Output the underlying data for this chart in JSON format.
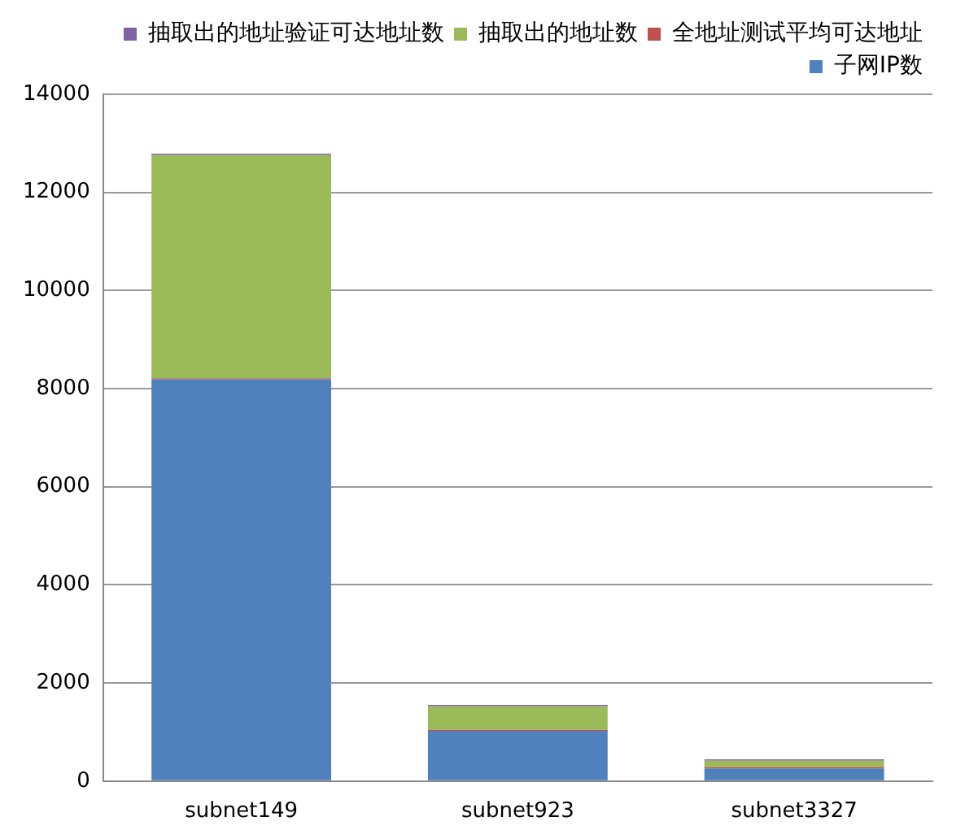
{
  "chart_data": {
    "type": "bar",
    "stacked": true,
    "categories": [
      "subnet149",
      "subnet923",
      "subnet3327"
    ],
    "series": [
      {
        "name": "子网IP数",
        "color": "#4f81bd",
        "values": [
          8192,
          1024,
          256
        ]
      },
      {
        "name": "全地址测试平均可达地址",
        "color": "#c0504d",
        "values": [
          20,
          20,
          30
        ]
      },
      {
        "name": "抽取出的地址数",
        "color": "#9bbb59",
        "values": [
          4550,
          480,
          130
        ]
      },
      {
        "name": "抽取出的地址验证可达地址数",
        "color": "#8064a2",
        "values": [
          30,
          30,
          30
        ]
      }
    ],
    "ylim": [
      0,
      14000
    ],
    "yticks": [
      0,
      2000,
      4000,
      6000,
      8000,
      10000,
      12000,
      14000
    ],
    "grid": "y",
    "legend": "top right"
  }
}
